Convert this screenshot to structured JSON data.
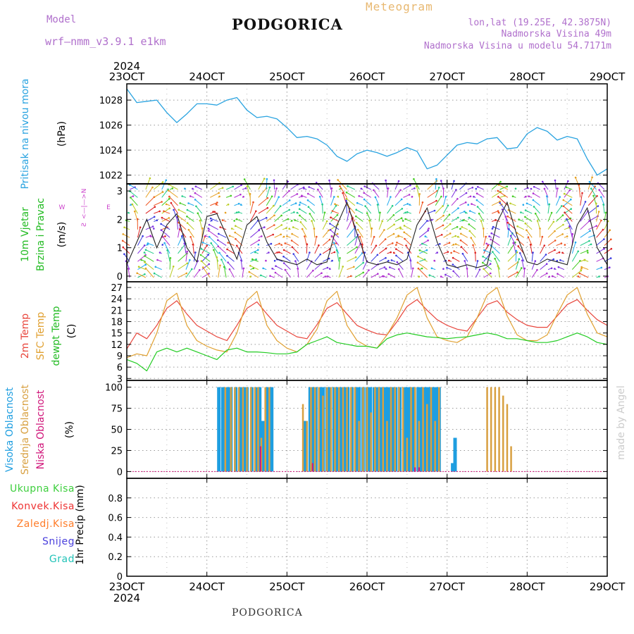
{
  "header": {
    "model_label": "Model",
    "model_name": "wrf—nmm_v3.9.1  e1km",
    "city": "PODGORICA",
    "product": "Meteogram",
    "lonlat": "lon,lat (19.25E, 42.3875N)",
    "elevation": "Nadmorska Visina 49m",
    "model_elevation": "Nadmorska Visina u modelu 54.7171m"
  },
  "footer": {
    "city": "PODGORICA",
    "credit": "made by Angel"
  },
  "colors": {
    "pressure": "#29a3e0",
    "temp2m": "#e8463c",
    "sfc": "#e0a030",
    "dewpt": "#22cc22",
    "high_cloud": "#1e9ee0",
    "mid_cloud": "#d8a040",
    "low_cloud": "#d0157a",
    "total_precip": "#3ecf3e",
    "conv_precip": "#ee3333",
    "frozen_precip": "#ff7d2a",
    "snow": "#4a40dd",
    "hail": "#22c3b8",
    "wind_label": "#22bb22",
    "wind_dir": "#cc44cc",
    "sfc_label": "#e0a030",
    "dew_label": "#22bb22",
    "temp_label": "#e8463c"
  },
  "chart_data": [
    {
      "id": "pressure",
      "type": "line",
      "title": "",
      "ylabel": "Pritisak na nivou mora",
      "unit": "(hPa)",
      "x_start": "2024-10-23T00:00",
      "x_end": "2024-10-29T00:00",
      "x_ticks": [
        "23OCT",
        "24OCT",
        "25OCT",
        "26OCT",
        "27OCT",
        "28OCT",
        "29OCT"
      ],
      "year": "2024",
      "ylim": [
        1021.3,
        1029.3
      ],
      "y_ticks": [
        1022,
        1024,
        1026,
        1028
      ],
      "series": [
        {
          "x": [
            "2024-10-23T00:00",
            "2024-10-23T03:00",
            "2024-10-23T06:00",
            "2024-10-23T09:00",
            "2024-10-23T12:00",
            "2024-10-23T15:00",
            "2024-10-23T18:00",
            "2024-10-23T21:00",
            "2024-10-24T00:00",
            "2024-10-24T03:00",
            "2024-10-24T06:00",
            "2024-10-24T09:00",
            "2024-10-24T12:00",
            "2024-10-24T15:00",
            "2024-10-24T18:00",
            "2024-10-24T21:00",
            "2024-10-25T00:00",
            "2024-10-25T03:00",
            "2024-10-25T06:00",
            "2024-10-25T09:00",
            "2024-10-25T12:00",
            "2024-10-25T15:00",
            "2024-10-25T18:00",
            "2024-10-25T21:00",
            "2024-10-26T00:00",
            "2024-10-26T03:00",
            "2024-10-26T06:00",
            "2024-10-26T09:00",
            "2024-10-26T12:00",
            "2024-10-26T15:00",
            "2024-10-26T18:00",
            "2024-10-26T21:00",
            "2024-10-27T00:00",
            "2024-10-27T03:00",
            "2024-10-27T06:00",
            "2024-10-27T09:00",
            "2024-10-27T12:00",
            "2024-10-27T15:00",
            "2024-10-27T18:00",
            "2024-10-27T21:00",
            "2024-10-28T00:00",
            "2024-10-28T03:00",
            "2024-10-28T06:00",
            "2024-10-28T09:00",
            "2024-10-28T12:00",
            "2024-10-28T15:00",
            "2024-10-28T18:00",
            "2024-10-28T21:00",
            "2024-10-29T00:00"
          ],
          "values": [
            1028.9,
            1027.8,
            1027.9,
            1028.0,
            1027.0,
            1026.2,
            1026.9,
            1027.7,
            1027.7,
            1027.6,
            1028.0,
            1028.2,
            1027.2,
            1026.6,
            1026.7,
            1026.5,
            1025.8,
            1025.0,
            1025.1,
            1024.9,
            1024.4,
            1023.5,
            1023.1,
            1023.7,
            1024.0,
            1023.8,
            1023.5,
            1023.8,
            1024.2,
            1023.9,
            1022.5,
            1022.8,
            1023.6,
            1024.4,
            1024.6,
            1024.5,
            1024.9,
            1025.0,
            1024.1,
            1024.2,
            1025.3,
            1025.8,
            1025.5,
            1024.8,
            1025.1,
            1024.9,
            1023.3,
            1022.0,
            1022.5
          ]
        }
      ]
    },
    {
      "id": "wind",
      "type": "line",
      "title": "",
      "ylabel": [
        "10m Vjetar",
        "Brzina i Pravac"
      ],
      "unit": "(m/s)",
      "direction_key": [
        "N",
        "<—|—>",
        "W",
        "E",
        "Ƨ"
      ],
      "ylim": [
        -0.2,
        3.25
      ],
      "y_ticks": [
        0,
        1,
        2,
        3
      ],
      "series": [
        {
          "name": "speed",
          "values": [
            0.4,
            1.2,
            2.0,
            1.0,
            1.8,
            2.2,
            1.0,
            0.5,
            2.1,
            2.2,
            1.4,
            0.6,
            1.8,
            2.1,
            1.2,
            0.6,
            0.5,
            0.4,
            0.6,
            0.4,
            0.5,
            1.8,
            2.6,
            1.5,
            0.5,
            0.4,
            0.5,
            0.4,
            0.6,
            1.8,
            2.4,
            1.2,
            0.4,
            0.3,
            0.4,
            0.3,
            0.4,
            1.9,
            2.6,
            1.4,
            0.5,
            0.4,
            0.6,
            0.5,
            0.4,
            1.8,
            2.4,
            1.0,
            0.4
          ]
        }
      ]
    },
    {
      "id": "temperature",
      "type": "line",
      "title": "",
      "ylabel": [
        "2m Temp",
        "SFC Temp",
        "dewpt Temp"
      ],
      "unit": "(C)",
      "ylim": [
        2.5,
        28.5
      ],
      "y_ticks": [
        3,
        6,
        9,
        12,
        15,
        18,
        21,
        24,
        27
      ],
      "series": [
        {
          "name": "2m Temp",
          "values": [
            10.8,
            15.0,
            13.5,
            17.0,
            21.5,
            23.5,
            20.0,
            17.0,
            15.5,
            14.0,
            13.0,
            17.0,
            21.5,
            23.2,
            20.0,
            17.0,
            15.5,
            14.0,
            13.5,
            17.2,
            21.5,
            23.0,
            20.0,
            17.0,
            15.8,
            14.8,
            14.5,
            18.0,
            22.0,
            23.8,
            21.0,
            18.5,
            17.0,
            16.0,
            15.5,
            19.0,
            22.5,
            23.5,
            20.5,
            18.5,
            17.0,
            16.5,
            16.5,
            19.5,
            22.5,
            23.8,
            21.0,
            18.5,
            17.0
          ]
        },
        {
          "name": "SFC Temp",
          "values": [
            8.5,
            9.5,
            9.0,
            15.0,
            23.5,
            25.5,
            17.0,
            13.0,
            11.5,
            10.5,
            10.0,
            15.0,
            23.5,
            26.0,
            17.0,
            13.0,
            11.0,
            10.0,
            12.0,
            16.0,
            23.5,
            26.0,
            17.0,
            13.0,
            11.5,
            11.0,
            14.5,
            19.0,
            25.0,
            27.0,
            19.0,
            14.0,
            13.0,
            12.5,
            14.0,
            19.0,
            25.0,
            27.0,
            19.5,
            14.5,
            13.0,
            13.0,
            14.5,
            20.0,
            25.0,
            27.0,
            20.0,
            15.0,
            14.0
          ]
        },
        {
          "name": "dewpt Temp",
          "values": [
            8.0,
            7.0,
            5.0,
            10.0,
            11.0,
            10.0,
            11.0,
            10.0,
            9.0,
            8.0,
            10.5,
            11.0,
            10.0,
            10.0,
            9.8,
            9.5,
            9.5,
            10.0,
            12.0,
            13.0,
            14.0,
            12.5,
            12.0,
            11.5,
            11.5,
            11.0,
            13.5,
            14.5,
            15.0,
            14.5,
            14.0,
            13.8,
            13.5,
            13.8,
            14.0,
            14.5,
            15.0,
            14.5,
            13.5,
            13.5,
            13.0,
            12.5,
            12.5,
            13.0,
            14.0,
            15.0,
            14.0,
            12.5,
            12.0
          ]
        }
      ]
    },
    {
      "id": "cloud",
      "type": "bar",
      "title": "",
      "ylabel": [
        "Visoka Oblacnost",
        "Srednja Oblacnost",
        "Niska Oblacnost"
      ],
      "unit": "(%)",
      "ylim": [
        -8,
        108
      ],
      "y_ticks": [
        0,
        25,
        50,
        75,
        100
      ],
      "series": [
        {
          "name": "Visoka Oblacnost",
          "x": [
            1.15,
            1.2,
            1.26,
            1.3,
            1.36,
            1.42,
            1.46,
            1.5,
            1.56,
            1.62,
            1.66,
            1.7,
            1.76,
            1.81,
            2.23,
            2.29,
            2.32,
            2.36,
            2.41,
            2.45,
            2.5,
            2.54,
            2.59,
            2.63,
            2.68,
            2.72,
            2.76,
            2.81,
            2.86,
            2.9,
            2.95,
            3.0,
            3.04,
            3.09,
            3.13,
            3.18,
            3.23,
            3.27,
            3.32,
            3.36,
            3.41,
            3.48,
            3.52,
            3.55,
            3.59,
            3.64,
            3.68,
            3.73,
            3.77,
            3.82,
            3.86,
            3.9,
            4.07,
            4.1
          ],
          "values": [
            100,
            100,
            100,
            100,
            100,
            100,
            100,
            100,
            100,
            100,
            100,
            60,
            100,
            100,
            60,
            100,
            100,
            100,
            100,
            100,
            100,
            100,
            100,
            100,
            100,
            100,
            100,
            100,
            100,
            100,
            100,
            100,
            100,
            100,
            100,
            100,
            100,
            100,
            100,
            100,
            100,
            100,
            100,
            100,
            100,
            100,
            100,
            100,
            100,
            100,
            100,
            100,
            10,
            40
          ]
        },
        {
          "name": "Srednja Oblacnost",
          "x": [
            1.23,
            1.3,
            1.35,
            1.4,
            1.45,
            1.5,
            1.55,
            1.6,
            1.64,
            1.68,
            1.73,
            1.78,
            2.2,
            2.25,
            2.3,
            2.35,
            2.4,
            2.45,
            2.5,
            2.55,
            2.6,
            2.65,
            2.7,
            2.75,
            2.8,
            2.85,
            2.9,
            2.95,
            3.0,
            3.05,
            3.1,
            3.15,
            3.2,
            3.25,
            3.3,
            3.35,
            3.4,
            3.45,
            3.5,
            3.55,
            3.6,
            3.65,
            3.7,
            3.75,
            3.8,
            3.85,
            3.9,
            4.5,
            4.55,
            4.6,
            4.65,
            4.7,
            4.75,
            4.8
          ],
          "values": [
            100,
            100,
            100,
            100,
            100,
            100,
            100,
            100,
            100,
            40,
            100,
            100,
            80,
            60,
            100,
            100,
            100,
            90,
            100,
            100,
            100,
            100,
            100,
            100,
            100,
            100,
            60,
            100,
            100,
            70,
            100,
            100,
            100,
            60,
            100,
            100,
            100,
            100,
            40,
            100,
            100,
            60,
            100,
            80,
            100,
            60,
            100,
            100,
            100,
            100,
            100,
            90,
            80,
            30
          ]
        },
        {
          "name": "Niska Oblacnost",
          "x": [
            1.67,
            2.32,
            3.6,
            3.65
          ],
          "values": [
            30,
            10,
            5,
            5
          ]
        }
      ]
    },
    {
      "id": "precip",
      "type": "line",
      "title": "",
      "ylabel": [
        "1hr Precip"
      ],
      "unit": "(mm)",
      "legend": [
        "Ukupna Kisa",
        "Konvek.Kisa",
        "Zaledj.Kisa",
        "Snijeg",
        "Grad"
      ],
      "ylim": [
        0,
        1.0
      ],
      "y_ticks": [
        "0",
        "0.2",
        "0.4",
        "0.6",
        "0.8"
      ],
      "x_ticks": [
        "23OCT",
        "24OCT",
        "25OCT",
        "26OCT",
        "27OCT",
        "28OCT",
        "29OCT"
      ],
      "year": "2024",
      "series": [
        {
          "name": "Ukupna Kisa",
          "values": [
            0,
            0,
            0,
            0,
            0,
            0,
            0
          ]
        }
      ]
    }
  ]
}
